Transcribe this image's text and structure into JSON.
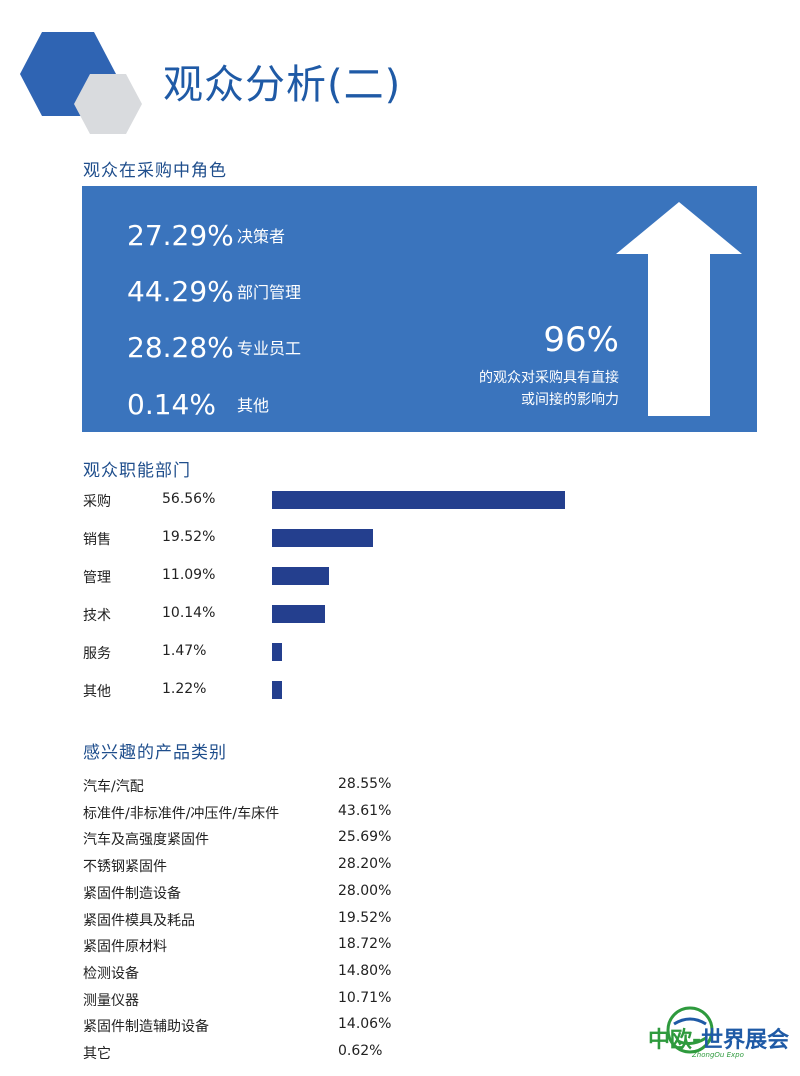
{
  "header": {
    "title": "观众分析(二)"
  },
  "roles": {
    "section_title": "观众在采购中角色",
    "items": [
      {
        "pct": "27.29%",
        "label": "决策者"
      },
      {
        "pct": "44.29%",
        "label": "部门管理"
      },
      {
        "pct": "28.28%",
        "label": "专业员工"
      },
      {
        "pct": "0.14%",
        "label": "其他"
      }
    ],
    "highlight": {
      "value": "96%",
      "line1": "的观众对采购具有直接",
      "line2": "或间接的影响力"
    }
  },
  "departments": {
    "section_title": "观众职能部门",
    "bar_color": "#243f8e",
    "items": [
      {
        "label": "采购",
        "pct": "56.56%"
      },
      {
        "label": "销售",
        "pct": "19.52%"
      },
      {
        "label": "管理",
        "pct": "11.09%"
      },
      {
        "label": "技术",
        "pct": "10.14%"
      },
      {
        "label": "服务",
        "pct": "1.47%"
      },
      {
        "label": "其他",
        "pct": "1.22%"
      }
    ]
  },
  "products": {
    "section_title": "感兴趣的产品类别",
    "items": [
      {
        "label": "汽车/汽配",
        "pct": "28.55%"
      },
      {
        "label": "标准件/非标准件/冲压件/车床件",
        "pct": "43.61%"
      },
      {
        "label": "汽车及高强度紧固件",
        "pct": "25.69%"
      },
      {
        "label": "不锈钢紧固件",
        "pct": "28.20%"
      },
      {
        "label": "紧固件制造设备",
        "pct": "28.00%"
      },
      {
        "label": "紧固件模具及耗品",
        "pct": "19.52%"
      },
      {
        "label": "紧固件原材料",
        "pct": "18.72%"
      },
      {
        "label": "检测设备",
        "pct": "14.80%"
      },
      {
        "label": "测量仪器",
        "pct": "10.71%"
      },
      {
        "label": "紧固件制造辅助设备",
        "pct": "14.06%"
      },
      {
        "label": "其它",
        "pct": "0.62%"
      }
    ]
  },
  "logo": {
    "main_green": "中欧-",
    "main_blue": "世界展会",
    "sub": "ZhongOu Expo"
  },
  "colors": {
    "accent": "#3a74bd",
    "title": "#1f5aa6",
    "bar": "#243f8e",
    "hex_gray": "#d9dbde"
  },
  "chart_data": {
    "type": "bar",
    "title": "观众职能部门",
    "categories": [
      "采购",
      "销售",
      "管理",
      "技术",
      "服务",
      "其他"
    ],
    "values": [
      56.56,
      19.52,
      11.09,
      10.14,
      1.47,
      1.22
    ],
    "xlabel": "",
    "ylabel": "",
    "orientation": "horizontal",
    "grid": false
  }
}
